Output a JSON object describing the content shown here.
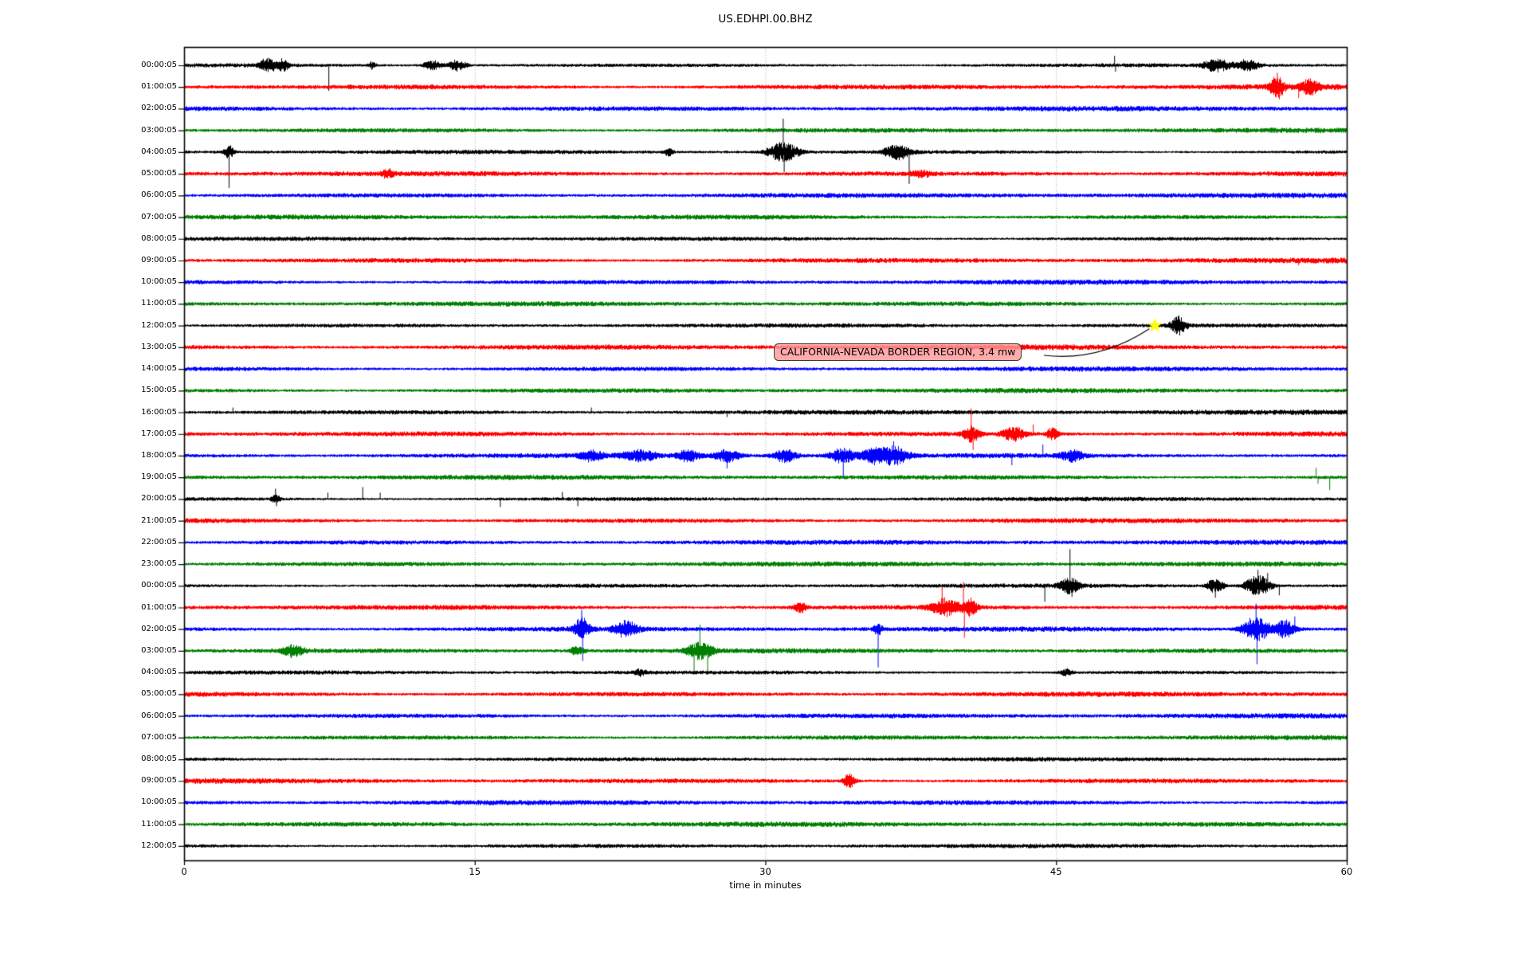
{
  "chart_data": {
    "type": "line",
    "subtype": "helicorder-dayplot",
    "title": "US.EDHPI.00.BHZ",
    "xlabel": "time in minutes",
    "xlim": [
      0,
      60
    ],
    "x_ticks": [
      "0",
      "15",
      "30",
      "45",
      "60"
    ],
    "x_tick_values": [
      0,
      15,
      30,
      45,
      60
    ],
    "grid_minutes": [
      15,
      30,
      45
    ],
    "grid_color": "#aaaaaa",
    "trace_color_cycle": [
      "#000000",
      "#ff0000",
      "#0000ff",
      "#008000"
    ],
    "annotation": {
      "text": "CALIFORNIA-NEVADA BORDER REGION, 3.4 mw",
      "box_fill": "rgba(255,150,150,0.80)",
      "box_border": "#3a3a3a",
      "points_to_row": 12,
      "points_to_minute": 50.1
    },
    "star_marker": {
      "row": 12,
      "minute": 50.1,
      "color": "#ffff00"
    },
    "rows": [
      {
        "label": "00:00:05",
        "color": "#000000",
        "end_minute": 60,
        "amp": 2.5,
        "events": [
          {
            "t": "b",
            "m": 4.3,
            "a": 8,
            "d": 0.8
          },
          {
            "t": "b",
            "m": 5.1,
            "a": 7,
            "d": 0.5
          },
          {
            "t": "s",
            "m": 7.45,
            "a": -32
          },
          {
            "t": "b",
            "m": 9.7,
            "a": 5,
            "d": 0.3
          },
          {
            "t": "b",
            "m": 12.8,
            "a": 6,
            "d": 0.8
          },
          {
            "t": "b",
            "m": 14.1,
            "a": 7,
            "d": 0.8
          },
          {
            "t": "s",
            "m": 48.0,
            "a": 12
          },
          {
            "t": "s",
            "m": 48.05,
            "a": -8
          },
          {
            "t": "b",
            "m": 53.3,
            "a": 8,
            "d": 1.2
          },
          {
            "t": "b",
            "m": 54.9,
            "a": 7,
            "d": 1.0
          }
        ]
      },
      {
        "label": "01:00:05",
        "color": "#ff0000",
        "end_minute": 60,
        "amp": 3.3,
        "events": [
          {
            "t": "b",
            "m": 56.4,
            "a": 14,
            "d": 0.6
          },
          {
            "t": "s",
            "m": 56.4,
            "a": 18
          },
          {
            "t": "s",
            "m": 56.45,
            "a": -12
          },
          {
            "t": "s",
            "m": 57.5,
            "a": -14
          },
          {
            "t": "b",
            "m": 58.1,
            "a": 9,
            "d": 0.8
          }
        ]
      },
      {
        "label": "02:00:05",
        "color": "#0000ff",
        "end_minute": 60,
        "amp": 3.2,
        "events": []
      },
      {
        "label": "03:00:05",
        "color": "#008000",
        "end_minute": 60,
        "amp": 3.0,
        "events": []
      },
      {
        "label": "04:00:05",
        "color": "#000000",
        "end_minute": 60,
        "amp": 2.5,
        "events": [
          {
            "t": "s",
            "m": 2.3,
            "a": -45
          },
          {
            "t": "b",
            "m": 2.3,
            "a": 8,
            "d": 0.4
          },
          {
            "t": "b",
            "m": 25.0,
            "a": 5,
            "d": 0.4
          },
          {
            "t": "b",
            "m": 30.9,
            "a": 12,
            "d": 1.4
          },
          {
            "t": "s",
            "m": 30.9,
            "a": 42
          },
          {
            "t": "s",
            "m": 30.95,
            "a": -25
          },
          {
            "t": "b",
            "m": 36.8,
            "a": 9,
            "d": 1.2
          },
          {
            "t": "s",
            "m": 37.4,
            "a": -40
          }
        ]
      },
      {
        "label": "05:00:05",
        "color": "#ff0000",
        "end_minute": 60,
        "amp": 3.3,
        "events": [
          {
            "t": "b",
            "m": 10.5,
            "a": 5,
            "d": 0.5
          },
          {
            "t": "b",
            "m": 38.0,
            "a": 4,
            "d": 0.8
          }
        ]
      },
      {
        "label": "06:00:05",
        "color": "#0000ff",
        "end_minute": 60,
        "amp": 3.1,
        "events": []
      },
      {
        "label": "07:00:05",
        "color": "#008000",
        "end_minute": 60,
        "amp": 2.9,
        "events": []
      },
      {
        "label": "08:00:05",
        "color": "#000000",
        "end_minute": 60,
        "amp": 2.5,
        "events": []
      },
      {
        "label": "09:00:05",
        "color": "#ff0000",
        "end_minute": 60,
        "amp": 3.2,
        "events": [
          {
            "t": "s",
            "m": 57.5,
            "a": -6
          }
        ]
      },
      {
        "label": "10:00:05",
        "color": "#0000ff",
        "end_minute": 60,
        "amp": 3.0,
        "events": []
      },
      {
        "label": "11:00:05",
        "color": "#008000",
        "end_minute": 60,
        "amp": 2.9,
        "events": []
      },
      {
        "label": "12:00:05",
        "color": "#000000",
        "end_minute": 60,
        "amp": 2.5,
        "events": [
          {
            "t": "b",
            "m": 51.3,
            "a": 11,
            "d": 0.7
          },
          {
            "t": "s",
            "m": 51.3,
            "a": 12
          }
        ]
      },
      {
        "label": "13:00:05",
        "color": "#ff0000",
        "end_minute": 60,
        "amp": 3.2,
        "events": []
      },
      {
        "label": "14:00:05",
        "color": "#0000ff",
        "end_minute": 60,
        "amp": 3.0,
        "events": []
      },
      {
        "label": "15:00:05",
        "color": "#008000",
        "end_minute": 60,
        "amp": 2.9,
        "events": []
      },
      {
        "label": "16:00:05",
        "color": "#000000",
        "end_minute": 60,
        "amp": 3.0,
        "events": [
          {
            "t": "s",
            "m": 2.5,
            "a": 6
          },
          {
            "t": "s",
            "m": 21.0,
            "a": 6
          },
          {
            "t": "s",
            "m": 28.0,
            "a": -6
          }
        ]
      },
      {
        "label": "17:00:05",
        "color": "#ff0000",
        "end_minute": 60,
        "amp": 3.2,
        "events": [
          {
            "t": "b",
            "m": 40.6,
            "a": 9,
            "d": 0.8
          },
          {
            "t": "s",
            "m": 40.6,
            "a": 32
          },
          {
            "t": "s",
            "m": 40.7,
            "a": -20
          },
          {
            "t": "b",
            "m": 42.8,
            "a": 9,
            "d": 1.0
          },
          {
            "t": "s",
            "m": 43.8,
            "a": 12
          },
          {
            "t": "b",
            "m": 44.8,
            "a": 8,
            "d": 0.5
          }
        ]
      },
      {
        "label": "18:00:05",
        "color": "#0000ff",
        "end_minute": 60,
        "amp": 2.9,
        "events": [
          {
            "t": "b",
            "m": 21.0,
            "a": 6,
            "d": 1.0
          },
          {
            "t": "b",
            "m": 23.5,
            "a": 7,
            "d": 1.5
          },
          {
            "t": "b",
            "m": 26.0,
            "a": 7,
            "d": 1.0
          },
          {
            "t": "s",
            "m": 28.0,
            "a": -16
          },
          {
            "t": "b",
            "m": 28.0,
            "a": 7,
            "d": 1.2
          },
          {
            "t": "b",
            "m": 31.0,
            "a": 8,
            "d": 1.0
          },
          {
            "t": "b",
            "m": 34.0,
            "a": 9,
            "d": 1.2
          },
          {
            "t": "s",
            "m": 34.0,
            "a": -26
          },
          {
            "t": "b",
            "m": 35.5,
            "a": 9,
            "d": 1.0
          },
          {
            "t": "b",
            "m": 36.6,
            "a": 11,
            "d": 1.3
          },
          {
            "t": "s",
            "m": 36.6,
            "a": 18
          },
          {
            "t": "s",
            "m": 42.7,
            "a": -12
          },
          {
            "t": "s",
            "m": 44.3,
            "a": 14
          },
          {
            "t": "b",
            "m": 45.8,
            "a": 7,
            "d": 1.0
          }
        ]
      },
      {
        "label": "19:00:05",
        "color": "#008000",
        "end_minute": 60,
        "amp": 2.9,
        "events": [
          {
            "t": "s",
            "m": 58.4,
            "a": 12
          },
          {
            "t": "s",
            "m": 58.5,
            "a": -8
          },
          {
            "t": "s",
            "m": 59.1,
            "a": -16
          }
        ]
      },
      {
        "label": "20:00:05",
        "color": "#000000",
        "end_minute": 60,
        "amp": 2.6,
        "events": [
          {
            "t": "b",
            "m": 4.7,
            "a": 5,
            "d": 0.4
          },
          {
            "t": "s",
            "m": 4.7,
            "a": 13
          },
          {
            "t": "s",
            "m": 4.75,
            "a": -9
          },
          {
            "t": "s",
            "m": 7.4,
            "a": 8
          },
          {
            "t": "s",
            "m": 9.2,
            "a": 15
          },
          {
            "t": "s",
            "m": 10.1,
            "a": 8
          },
          {
            "t": "s",
            "m": 16.3,
            "a": -10
          },
          {
            "t": "s",
            "m": 19.5,
            "a": 9
          },
          {
            "t": "s",
            "m": 20.3,
            "a": -9
          }
        ]
      },
      {
        "label": "21:00:05",
        "color": "#ff0000",
        "end_minute": 60,
        "amp": 3.1,
        "events": []
      },
      {
        "label": "22:00:05",
        "color": "#0000ff",
        "end_minute": 60,
        "amp": 3.0,
        "events": []
      },
      {
        "label": "23:00:05",
        "color": "#008000",
        "end_minute": 60,
        "amp": 3.0,
        "events": []
      },
      {
        "label": "00:00:05",
        "color": "#000000",
        "end_minute": 60,
        "amp": 2.5,
        "events": [
          {
            "t": "s",
            "m": 44.4,
            "a": -20
          },
          {
            "t": "b",
            "m": 45.7,
            "a": 10,
            "d": 0.9
          },
          {
            "t": "s",
            "m": 45.7,
            "a": 46
          },
          {
            "t": "s",
            "m": 45.8,
            "a": -14
          },
          {
            "t": "b",
            "m": 53.2,
            "a": 9,
            "d": 0.7
          },
          {
            "t": "s",
            "m": 53.2,
            "a": -15
          },
          {
            "t": "b",
            "m": 55.4,
            "a": 14,
            "d": 1.1
          },
          {
            "t": "s",
            "m": 55.4,
            "a": 20
          },
          {
            "t": "s",
            "m": 55.9,
            "a": 16
          },
          {
            "t": "s",
            "m": 56.5,
            "a": -12
          }
        ]
      },
      {
        "label": "01:00:05",
        "color": "#ff0000",
        "end_minute": 60,
        "amp": 3.2,
        "events": [
          {
            "t": "b",
            "m": 31.8,
            "a": 7,
            "d": 0.5
          },
          {
            "t": "b",
            "m": 39.3,
            "a": 10,
            "d": 1.4
          },
          {
            "t": "s",
            "m": 39.1,
            "a": 26
          },
          {
            "t": "s",
            "m": 40.2,
            "a": 32
          },
          {
            "t": "s",
            "m": 40.25,
            "a": -38
          },
          {
            "t": "b",
            "m": 40.6,
            "a": 10,
            "d": 0.6
          }
        ]
      },
      {
        "label": "02:00:05",
        "color": "#0000ff",
        "end_minute": 60,
        "amp": 3.0,
        "events": [
          {
            "t": "b",
            "m": 20.5,
            "a": 14,
            "d": 0.7
          },
          {
            "t": "s",
            "m": 20.5,
            "a": 24
          },
          {
            "t": "s",
            "m": 20.55,
            "a": -40
          },
          {
            "t": "b",
            "m": 22.8,
            "a": 9,
            "d": 1.1
          },
          {
            "t": "s",
            "m": 35.8,
            "a": -48
          },
          {
            "t": "b",
            "m": 35.8,
            "a": 6,
            "d": 0.4
          },
          {
            "t": "b",
            "m": 55.3,
            "a": 16,
            "d": 1.2
          },
          {
            "t": "s",
            "m": 55.3,
            "a": 32
          },
          {
            "t": "s",
            "m": 55.35,
            "a": -44
          },
          {
            "t": "b",
            "m": 56.8,
            "a": 11,
            "d": 0.9
          },
          {
            "t": "s",
            "m": 57.3,
            "a": 16
          }
        ]
      },
      {
        "label": "03:00:05",
        "color": "#008000",
        "end_minute": 60,
        "amp": 2.9,
        "events": [
          {
            "t": "b",
            "m": 5.6,
            "a": 7,
            "d": 1.0
          },
          {
            "t": "b",
            "m": 20.3,
            "a": 6,
            "d": 0.6
          },
          {
            "t": "b",
            "m": 26.6,
            "a": 10,
            "d": 1.2
          },
          {
            "t": "s",
            "m": 26.6,
            "a": 33
          },
          {
            "t": "s",
            "m": 26.3,
            "a": -26
          },
          {
            "t": "s",
            "m": 27.0,
            "a": -30
          }
        ]
      },
      {
        "label": "04:00:05",
        "color": "#000000",
        "end_minute": 60,
        "amp": 2.4,
        "events": [
          {
            "t": "b",
            "m": 23.5,
            "a": 4,
            "d": 0.5
          },
          {
            "t": "b",
            "m": 45.5,
            "a": 4,
            "d": 0.6
          }
        ]
      },
      {
        "label": "05:00:05",
        "color": "#ff0000",
        "end_minute": 60,
        "amp": 3.2,
        "events": []
      },
      {
        "label": "06:00:05",
        "color": "#0000ff",
        "end_minute": 60,
        "amp": 3.0,
        "events": []
      },
      {
        "label": "07:00:05",
        "color": "#008000",
        "end_minute": 60,
        "amp": 2.9,
        "events": []
      },
      {
        "label": "08:00:05",
        "color": "#000000",
        "end_minute": 60,
        "amp": 2.5,
        "events": []
      },
      {
        "label": "09:00:05",
        "color": "#ff0000",
        "end_minute": 60,
        "amp": 3.2,
        "events": [
          {
            "t": "b",
            "m": 34.3,
            "a": 9,
            "d": 0.5
          },
          {
            "t": "s",
            "m": 34.3,
            "a": -8
          }
        ]
      },
      {
        "label": "10:00:05",
        "color": "#0000ff",
        "end_minute": 60,
        "amp": 3.0,
        "events": []
      },
      {
        "label": "11:00:05",
        "color": "#008000",
        "end_minute": 60,
        "amp": 3.0,
        "events": []
      },
      {
        "label": "12:00:05",
        "color": "#000000",
        "end_minute": 60,
        "amp": 2.5,
        "events": []
      }
    ]
  }
}
